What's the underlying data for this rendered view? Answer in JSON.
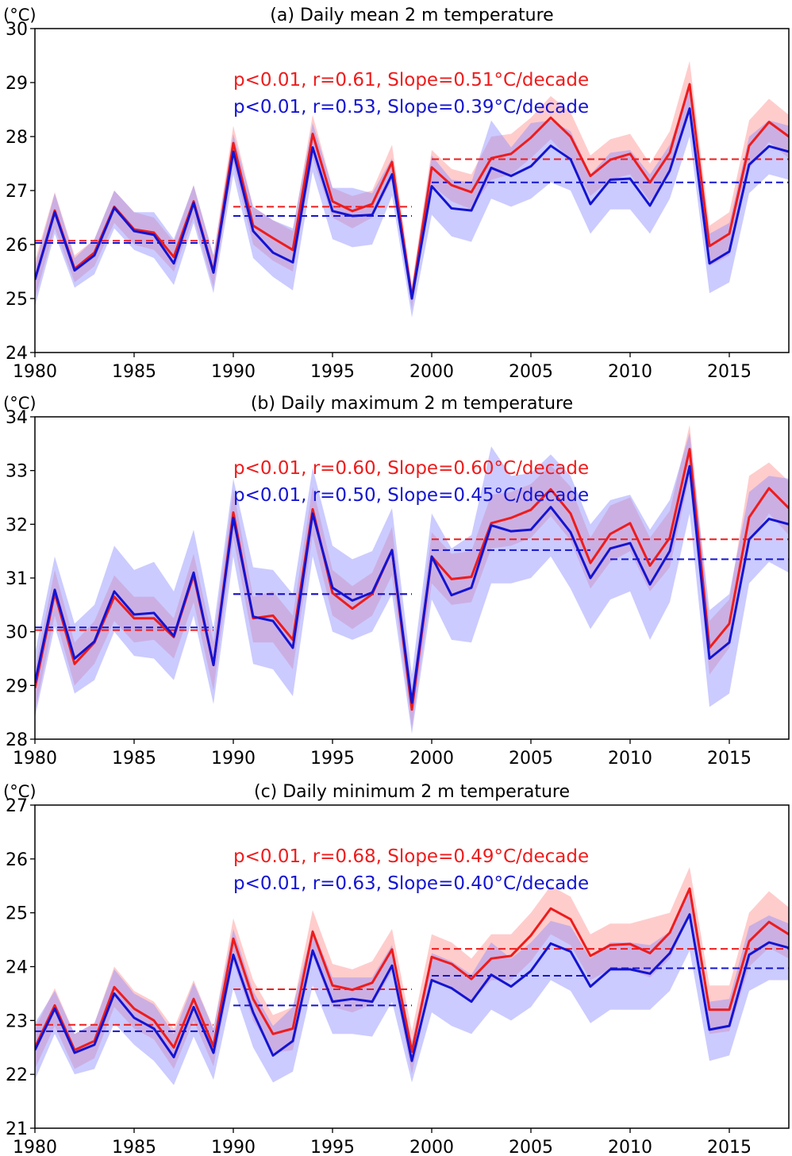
{
  "colors": {
    "red": "#ee1c1c",
    "blue": "#1414d2",
    "red_fill": "#ff9a9a",
    "blue_fill": "#8c8cff"
  },
  "chart_data": [
    {
      "type": "line",
      "title": "(a) Daily mean 2 m temperature",
      "unit": "(°C)",
      "ylim": [
        24,
        30
      ],
      "yticks": [
        24,
        25,
        26,
        27,
        28,
        29,
        30
      ],
      "xlim": [
        1980,
        2018
      ],
      "xticks": [
        1980,
        1985,
        1990,
        1995,
        2000,
        2005,
        2010,
        2015
      ],
      "x": [
        1980,
        1981,
        1982,
        1983,
        1984,
        1985,
        1986,
        1987,
        1988,
        1989,
        1990,
        1991,
        1992,
        1993,
        1994,
        1995,
        1996,
        1997,
        1998,
        1999,
        2000,
        2001,
        2002,
        2003,
        2004,
        2005,
        2006,
        2007,
        2008,
        2009,
        2010,
        2011,
        2012,
        2013,
        2014,
        2015,
        2016,
        2017,
        2018
      ],
      "stats": [
        "p<0.01, r=0.61, Slope=0.51°C/decade",
        "p<0.01, r=0.53, Slope=0.39°C/decade"
      ],
      "series": [
        {
          "color": "red",
          "values": [
            25.35,
            26.63,
            25.55,
            25.85,
            26.7,
            26.28,
            26.22,
            25.77,
            26.8,
            25.5,
            27.88,
            26.35,
            26.12,
            25.9,
            28.05,
            26.8,
            26.62,
            26.75,
            27.53,
            25.02,
            27.43,
            27.1,
            26.97,
            27.6,
            27.68,
            27.98,
            28.35,
            28.0,
            27.27,
            27.57,
            27.68,
            27.15,
            27.7,
            28.97,
            25.97,
            26.2,
            27.83,
            28.27,
            28.0
          ],
          "lower": [
            25.0,
            26.3,
            25.3,
            25.6,
            26.4,
            26.0,
            25.9,
            25.5,
            26.5,
            25.2,
            27.5,
            26.0,
            25.7,
            25.5,
            27.6,
            26.5,
            26.3,
            26.5,
            27.2,
            24.8,
            27.1,
            26.8,
            26.65,
            27.2,
            27.3,
            27.6,
            27.95,
            27.55,
            26.9,
            27.2,
            27.3,
            26.8,
            27.3,
            28.5,
            25.6,
            25.8,
            27.4,
            27.9,
            27.6
          ],
          "upper": [
            25.7,
            26.97,
            25.8,
            26.1,
            27.0,
            26.6,
            26.5,
            26.05,
            27.1,
            25.8,
            28.2,
            26.7,
            26.45,
            26.25,
            28.4,
            27.05,
            26.9,
            27.0,
            27.85,
            25.25,
            27.75,
            27.4,
            27.3,
            28.0,
            28.05,
            28.35,
            28.75,
            28.45,
            27.65,
            27.95,
            28.05,
            27.5,
            28.1,
            29.4,
            26.35,
            26.6,
            28.3,
            28.7,
            28.4
          ],
          "means": [
            {
              "from": 1980,
              "to": 1989,
              "value": 26.07
            },
            {
              "from": 1990,
              "to": 1999,
              "value": 26.7
            },
            {
              "from": 2000,
              "to": 2018,
              "value": 27.58
            }
          ]
        },
        {
          "color": "blue",
          "values": [
            25.35,
            26.6,
            25.52,
            25.8,
            26.68,
            26.25,
            26.18,
            25.65,
            26.77,
            25.48,
            27.72,
            26.25,
            25.85,
            25.67,
            27.8,
            26.62,
            26.53,
            26.55,
            27.3,
            25.0,
            27.08,
            26.67,
            26.63,
            27.42,
            27.27,
            27.45,
            27.83,
            27.58,
            26.75,
            27.2,
            27.22,
            26.72,
            27.37,
            28.52,
            25.65,
            25.87,
            27.48,
            27.82,
            27.72
          ],
          "lower": [
            24.85,
            26.2,
            25.2,
            25.45,
            26.3,
            25.9,
            25.75,
            25.25,
            26.4,
            25.1,
            27.3,
            25.75,
            25.4,
            25.15,
            27.35,
            26.1,
            25.95,
            26.0,
            26.9,
            24.65,
            26.55,
            26.15,
            26.05,
            26.85,
            26.7,
            26.85,
            27.15,
            27.0,
            26.2,
            26.65,
            26.65,
            26.2,
            26.85,
            28.0,
            25.1,
            25.3,
            26.95,
            27.3,
            27.2
          ],
          "upper": [
            25.6,
            26.95,
            25.75,
            26.1,
            27.0,
            26.6,
            26.6,
            26.1,
            27.1,
            25.8,
            28.05,
            26.7,
            26.45,
            26.3,
            28.25,
            27.05,
            27.05,
            26.95,
            27.6,
            25.2,
            27.65,
            27.2,
            27.15,
            28.3,
            27.8,
            28.25,
            28.3,
            28.1,
            27.3,
            27.7,
            27.75,
            27.3,
            27.85,
            28.9,
            26.2,
            26.4,
            28.0,
            28.3,
            28.2
          ],
          "means": [
            {
              "from": 1980,
              "to": 1989,
              "value": 26.03
            },
            {
              "from": 1990,
              "to": 1999,
              "value": 26.53
            },
            {
              "from": 2000,
              "to": 2018,
              "value": 27.15
            }
          ]
        }
      ]
    },
    {
      "type": "line",
      "title": "(b) Daily maximum 2 m temperature",
      "unit": "(°C)",
      "ylim": [
        28,
        34
      ],
      "yticks": [
        28,
        29,
        30,
        31,
        32,
        33,
        34
      ],
      "xlim": [
        1980,
        2018
      ],
      "xticks": [
        1980,
        1985,
        1990,
        1995,
        2000,
        2005,
        2010,
        2015
      ],
      "x": [
        1980,
        1981,
        1982,
        1983,
        1984,
        1985,
        1986,
        1987,
        1988,
        1989,
        1990,
        1991,
        1992,
        1993,
        1994,
        1995,
        1996,
        1997,
        1998,
        1999,
        2000,
        2001,
        2002,
        2003,
        2004,
        2005,
        2006,
        2007,
        2008,
        2009,
        2010,
        2011,
        2012,
        2013,
        2014,
        2015,
        2016,
        2017,
        2018
      ],
      "stats": [
        "p<0.01, r=0.60, Slope=0.60°C/decade",
        "p<0.01, r=0.50, Slope=0.45°C/decade"
      ],
      "series": [
        {
          "color": "red",
          "values": [
            28.95,
            30.72,
            29.4,
            29.8,
            30.65,
            30.25,
            30.25,
            29.9,
            31.05,
            29.38,
            32.22,
            30.25,
            30.3,
            29.85,
            32.28,
            30.72,
            30.43,
            30.7,
            31.52,
            28.55,
            31.4,
            30.98,
            31.02,
            32.02,
            32.12,
            32.27,
            32.65,
            32.2,
            31.28,
            31.82,
            32.02,
            31.23,
            31.75,
            33.4,
            29.7,
            30.15,
            32.13,
            32.67,
            32.3
          ],
          "lower": [
            28.5,
            30.3,
            29.0,
            29.4,
            30.2,
            29.8,
            29.85,
            29.5,
            30.55,
            28.9,
            31.75,
            29.8,
            29.8,
            29.3,
            31.8,
            30.3,
            30.05,
            30.3,
            31.05,
            28.2,
            30.9,
            30.5,
            30.55,
            31.55,
            31.6,
            31.75,
            32.15,
            31.7,
            30.8,
            31.3,
            31.5,
            30.75,
            31.2,
            32.9,
            29.2,
            29.7,
            31.65,
            32.2,
            31.8
          ],
          "upper": [
            29.3,
            31.15,
            29.8,
            30.2,
            31.05,
            30.65,
            30.65,
            30.25,
            31.45,
            29.8,
            32.65,
            30.65,
            30.75,
            30.3,
            32.7,
            31.15,
            30.85,
            31.1,
            31.95,
            28.9,
            31.85,
            31.45,
            31.5,
            32.55,
            32.6,
            32.75,
            33.1,
            32.7,
            31.75,
            32.35,
            32.5,
            31.75,
            32.25,
            33.85,
            30.2,
            30.6,
            32.9,
            33.15,
            32.8
          ],
          "means": [
            {
              "from": 1980,
              "to": 1989,
              "value": 30.03
            },
            {
              "from": 1990,
              "to": 1999,
              "value": 30.7
            },
            {
              "from": 2000,
              "to": 2018,
              "value": 31.72
            }
          ]
        },
        {
          "color": "blue",
          "values": [
            29.05,
            30.78,
            29.5,
            29.82,
            30.75,
            30.32,
            30.35,
            29.92,
            31.1,
            29.38,
            32.12,
            30.28,
            30.2,
            29.7,
            32.2,
            30.82,
            30.58,
            30.73,
            31.52,
            28.68,
            31.4,
            30.68,
            30.82,
            31.98,
            31.87,
            31.9,
            32.32,
            31.85,
            31.0,
            31.55,
            31.65,
            30.88,
            31.5,
            33.08,
            29.5,
            29.8,
            31.72,
            32.1,
            32.0
          ],
          "lower": [
            28.4,
            30.1,
            28.85,
            29.1,
            30.0,
            29.55,
            29.5,
            29.1,
            30.3,
            28.65,
            31.4,
            29.4,
            29.3,
            28.8,
            31.4,
            30.0,
            29.85,
            30.0,
            30.7,
            28.1,
            30.6,
            29.85,
            29.8,
            30.9,
            30.9,
            31.0,
            31.4,
            30.8,
            30.05,
            30.6,
            30.75,
            29.85,
            30.55,
            32.2,
            28.6,
            28.85,
            30.9,
            31.3,
            31.1
          ],
          "upper": [
            29.6,
            31.4,
            30.15,
            30.5,
            31.6,
            31.15,
            31.3,
            30.75,
            31.9,
            30.05,
            32.85,
            31.2,
            31.15,
            30.7,
            33.05,
            31.6,
            31.35,
            31.5,
            32.3,
            29.2,
            32.2,
            31.55,
            31.8,
            33.45,
            32.9,
            32.95,
            33.3,
            32.9,
            32.0,
            32.45,
            32.55,
            31.9,
            32.45,
            33.7,
            30.4,
            30.7,
            32.6,
            32.9,
            32.85
          ],
          "means": [
            {
              "from": 1980,
              "to": 1989,
              "value": 30.08
            },
            {
              "from": 1990,
              "to": 1999,
              "value": 30.7
            },
            {
              "from": 2000,
              "to": 2008,
              "value": 31.52
            },
            {
              "from": 2009,
              "to": 2018,
              "value": 31.35
            }
          ]
        }
      ]
    },
    {
      "type": "line",
      "title": "(c) Daily minimum 2 m temperature",
      "unit": "(°C)",
      "ylim": [
        21,
        27
      ],
      "yticks": [
        21,
        22,
        23,
        24,
        25,
        26,
        27
      ],
      "xlim": [
        1980,
        2018
      ],
      "xticks": [
        1980,
        1985,
        1990,
        1995,
        2000,
        2005,
        2010,
        2015
      ],
      "x": [
        1980,
        1981,
        1982,
        1983,
        1984,
        1985,
        1986,
        1987,
        1988,
        1989,
        1990,
        1991,
        1992,
        1993,
        1994,
        1995,
        1996,
        1997,
        1998,
        1999,
        2000,
        2001,
        2002,
        2003,
        2004,
        2005,
        2006,
        2007,
        2008,
        2009,
        2010,
        2011,
        2012,
        2013,
        2014,
        2015,
        2016,
        2017,
        2018
      ],
      "stats": [
        "p<0.01, r=0.68, Slope=0.49°C/decade",
        "p<0.01, r=0.63, Slope=0.40°C/decade"
      ],
      "series": [
        {
          "color": "red",
          "values": [
            22.5,
            23.28,
            22.45,
            22.62,
            23.62,
            23.22,
            23.0,
            22.5,
            23.4,
            22.52,
            24.52,
            23.4,
            22.75,
            22.85,
            24.65,
            23.65,
            23.57,
            23.7,
            24.32,
            22.42,
            24.18,
            24.05,
            23.77,
            24.15,
            24.2,
            24.58,
            25.08,
            24.88,
            24.2,
            24.4,
            24.42,
            24.25,
            24.63,
            25.45,
            23.2,
            23.2,
            24.47,
            24.83,
            24.6
          ],
          "lower": [
            22.1,
            22.9,
            22.1,
            22.3,
            23.25,
            22.85,
            22.65,
            22.1,
            23.0,
            22.15,
            24.1,
            23.0,
            22.4,
            22.45,
            24.2,
            23.25,
            23.15,
            23.3,
            23.9,
            22.0,
            23.75,
            23.6,
            23.35,
            23.75,
            23.75,
            24.1,
            24.6,
            24.4,
            23.75,
            23.95,
            23.95,
            23.8,
            24.15,
            24.95,
            22.75,
            22.8,
            24.0,
            24.35,
            24.15
          ],
          "upper": [
            22.85,
            23.6,
            22.75,
            22.95,
            24.0,
            23.55,
            23.35,
            22.85,
            23.75,
            22.85,
            24.9,
            23.75,
            23.1,
            23.25,
            25.05,
            24.05,
            23.95,
            24.1,
            24.7,
            22.8,
            24.6,
            24.45,
            24.15,
            24.6,
            24.6,
            25.0,
            25.5,
            25.3,
            24.6,
            24.8,
            24.8,
            24.9,
            25.0,
            25.85,
            23.65,
            23.65,
            25.0,
            25.4,
            25.1
          ],
          "means": [
            {
              "from": 1980,
              "to": 1989,
              "value": 22.92
            },
            {
              "from": 1990,
              "to": 1999,
              "value": 23.58
            },
            {
              "from": 2000,
              "to": 2018,
              "value": 24.33
            }
          ]
        },
        {
          "color": "blue",
          "values": [
            22.45,
            23.22,
            22.4,
            22.55,
            23.5,
            23.05,
            22.85,
            22.32,
            23.25,
            22.4,
            24.22,
            23.15,
            22.35,
            22.62,
            24.3,
            23.35,
            23.4,
            23.35,
            24.02,
            22.25,
            23.75,
            23.6,
            23.35,
            23.85,
            23.63,
            23.92,
            24.43,
            24.28,
            23.63,
            23.95,
            23.95,
            23.87,
            24.25,
            24.97,
            22.83,
            22.9,
            24.22,
            24.45,
            24.35
          ],
          "lower": [
            21.9,
            22.75,
            22.0,
            22.1,
            22.95,
            22.55,
            22.25,
            21.8,
            22.7,
            21.9,
            23.6,
            22.5,
            21.85,
            22.05,
            23.65,
            22.75,
            22.75,
            22.7,
            23.35,
            21.85,
            23.15,
            22.9,
            22.75,
            23.2,
            23.0,
            23.25,
            23.75,
            23.55,
            22.95,
            23.2,
            23.2,
            23.2,
            23.55,
            24.3,
            22.25,
            22.35,
            23.55,
            23.75,
            23.75
          ],
          "upper": [
            22.95,
            23.55,
            22.75,
            22.95,
            23.95,
            23.5,
            23.3,
            22.75,
            23.7,
            22.85,
            24.7,
            23.55,
            22.9,
            23.25,
            24.7,
            23.8,
            23.8,
            23.8,
            24.4,
            22.6,
            24.25,
            24.1,
            23.85,
            24.45,
            24.15,
            24.45,
            24.85,
            24.75,
            24.15,
            24.45,
            24.45,
            24.4,
            24.65,
            25.45,
            23.35,
            23.4,
            24.75,
            24.95,
            24.8
          ],
          "means": [
            {
              "from": 1980,
              "to": 1989,
              "value": 22.8
            },
            {
              "from": 1990,
              "to": 1999,
              "value": 23.28
            },
            {
              "from": 2000,
              "to": 2008,
              "value": 23.83
            },
            {
              "from": 2009,
              "to": 2018,
              "value": 23.97
            }
          ]
        }
      ]
    }
  ]
}
